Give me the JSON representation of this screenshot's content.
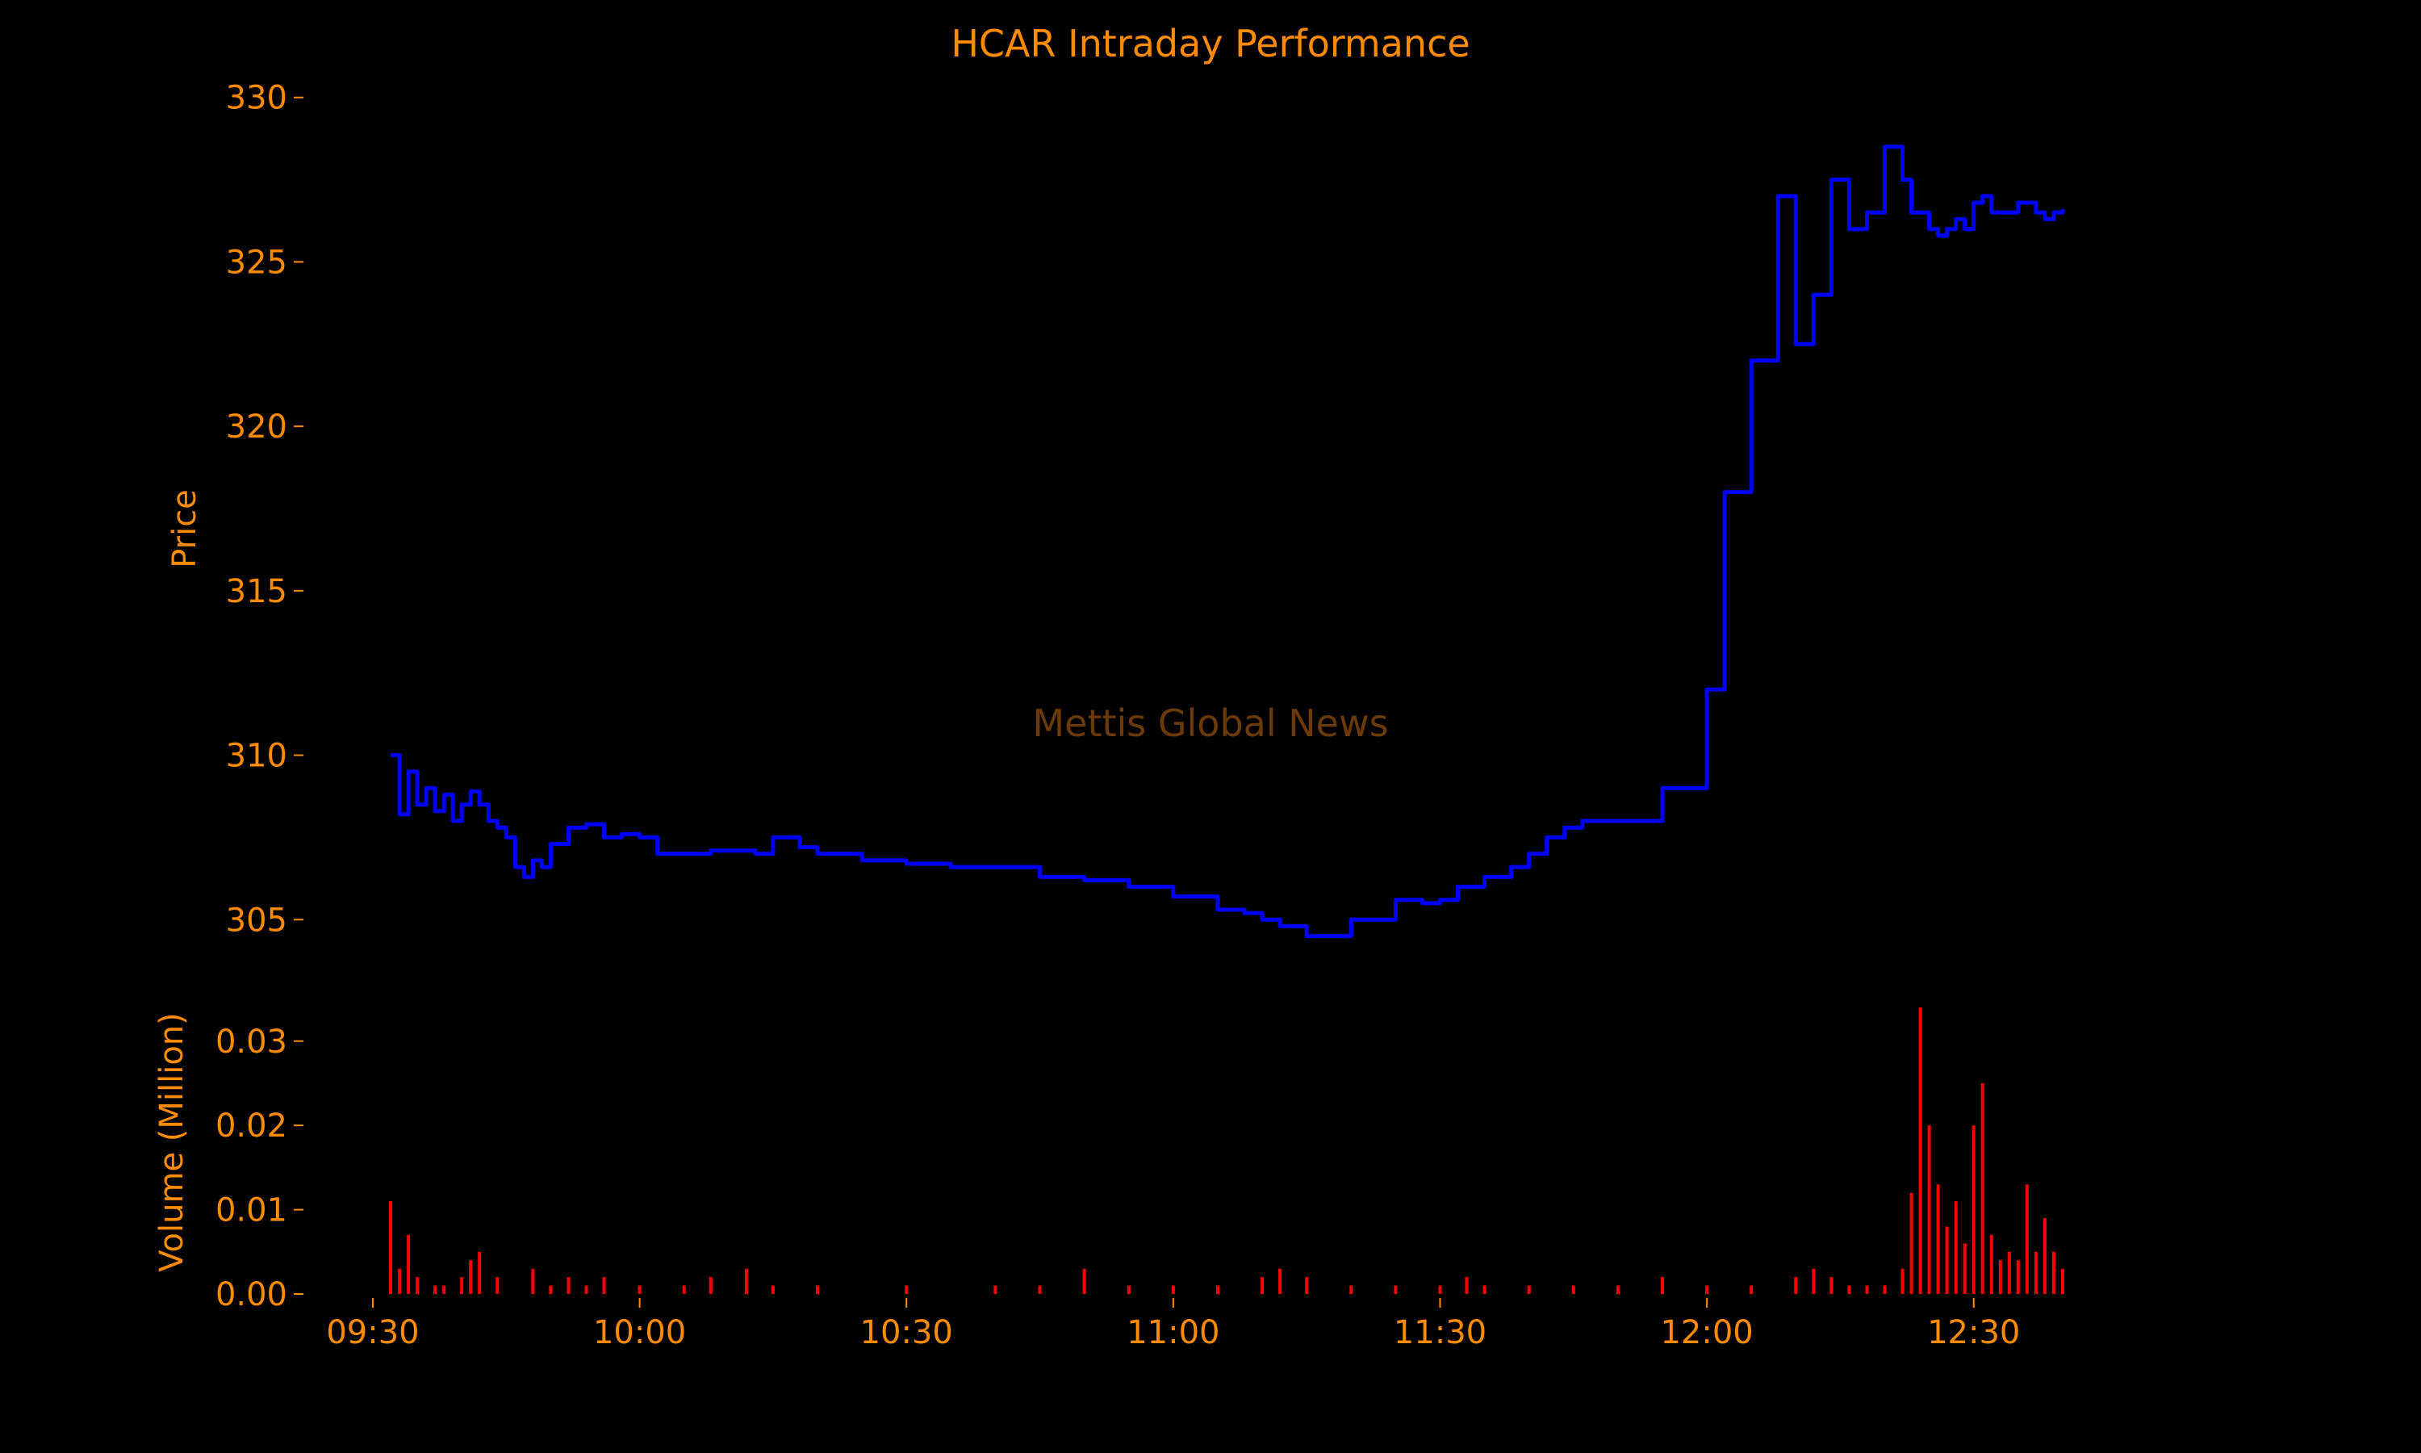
{
  "colors": {
    "background": "#000000",
    "text": "#ff8c00",
    "price_line": "#0000ff",
    "volume_bars": "#ff0000",
    "watermark": "#6b3a08"
  },
  "watermark": "Mettis Global News",
  "chart_data": {
    "type": "line",
    "title": "HCAR Intraday Performance",
    "xlabel": "",
    "x_ticks": [
      "09:30",
      "10:00",
      "10:30",
      "11:00",
      "11:30",
      "12:00",
      "12:30"
    ],
    "x_range": [
      "09:30",
      "12:44"
    ],
    "grid": false,
    "legend": "none",
    "panels": [
      {
        "name": "price",
        "ylabel": "Price",
        "ylim": [
          304,
          331
        ],
        "y_ticks": [
          "305",
          "310",
          "315",
          "320",
          "325",
          "330"
        ],
        "series": [
          {
            "type": "line",
            "x": [
              "09:32",
              "09:33",
              "09:34",
              "09:35",
              "09:36",
              "09:37",
              "09:38",
              "09:39",
              "09:40",
              "09:41",
              "09:42",
              "09:43",
              "09:44",
              "09:45",
              "09:46",
              "09:47",
              "09:48",
              "09:49",
              "09:50",
              "09:52",
              "09:54",
              "09:56",
              "09:58",
              "10:00",
              "10:02",
              "10:05",
              "10:08",
              "10:11",
              "10:13",
              "10:15",
              "10:18",
              "10:20",
              "10:25",
              "10:30",
              "10:35",
              "10:40",
              "10:45",
              "10:50",
              "10:55",
              "11:00",
              "11:05",
              "11:08",
              "11:10",
              "11:12",
              "11:15",
              "11:20",
              "11:25",
              "11:28",
              "11:30",
              "11:32",
              "11:35",
              "11:38",
              "11:40",
              "11:42",
              "11:44",
              "11:46",
              "11:48",
              "11:52",
              "11:55",
              "12:00",
              "12:02",
              "12:05",
              "12:08",
              "12:10",
              "12:12",
              "12:14",
              "12:16",
              "12:18",
              "12:20",
              "12:22",
              "12:23",
              "12:24",
              "12:25",
              "12:26",
              "12:27",
              "12:28",
              "12:29",
              "12:30",
              "12:31",
              "12:32",
              "12:33",
              "12:34",
              "12:35",
              "12:36",
              "12:37",
              "12:38",
              "12:39",
              "12:40"
            ],
            "y": [
              310.0,
              308.2,
              309.5,
              308.5,
              309.0,
              308.3,
              308.8,
              308.0,
              308.5,
              308.9,
              308.5,
              308.0,
              307.8,
              307.5,
              306.6,
              306.3,
              306.8,
              306.6,
              307.3,
              307.8,
              307.9,
              307.5,
              307.6,
              307.5,
              307.0,
              307.0,
              307.1,
              307.1,
              307.0,
              307.5,
              307.2,
              307.0,
              306.8,
              306.7,
              306.6,
              306.6,
              306.3,
              306.2,
              306.0,
              305.7,
              305.3,
              305.2,
              305.0,
              304.8,
              304.5,
              305.0,
              305.6,
              305.5,
              305.6,
              306.0,
              306.3,
              306.6,
              307.0,
              307.5,
              307.8,
              308.0,
              308.0,
              308.0,
              309.0,
              312.0,
              318.0,
              322.0,
              327.0,
              322.5,
              324.0,
              327.5,
              326.0,
              326.5,
              328.5,
              327.5,
              326.5,
              326.5,
              326.0,
              325.8,
              326.0,
              326.3,
              326.0,
              326.8,
              327.0,
              326.5,
              326.5,
              326.5,
              326.8,
              326.8,
              326.5,
              326.3,
              326.5,
              326.6
            ],
            "name": ""
          }
        ]
      },
      {
        "name": "volume",
        "ylabel": "Volume (Million)",
        "ylim": [
          0,
          0.034
        ],
        "y_ticks": [
          "0.00",
          "0.01",
          "0.02",
          "0.03"
        ],
        "series": [
          {
            "type": "bar",
            "x": [
              "09:32",
              "09:33",
              "09:34",
              "09:35",
              "09:37",
              "09:38",
              "09:40",
              "09:41",
              "09:42",
              "09:44",
              "09:48",
              "09:50",
              "09:52",
              "09:54",
              "09:56",
              "10:00",
              "10:05",
              "10:08",
              "10:12",
              "10:15",
              "10:20",
              "10:30",
              "10:40",
              "10:45",
              "10:50",
              "10:55",
              "11:00",
              "11:05",
              "11:10",
              "11:12",
              "11:15",
              "11:20",
              "11:25",
              "11:30",
              "11:33",
              "11:35",
              "11:40",
              "11:45",
              "11:50",
              "11:55",
              "12:00",
              "12:05",
              "12:10",
              "12:12",
              "12:14",
              "12:16",
              "12:18",
              "12:20",
              "12:22",
              "12:23",
              "12:24",
              "12:25",
              "12:26",
              "12:27",
              "12:28",
              "12:29",
              "12:30",
              "12:31",
              "12:32",
              "12:33",
              "12:34",
              "12:35",
              "12:36",
              "12:37",
              "12:38",
              "12:39",
              "12:40"
            ],
            "values": [
              0.011,
              0.003,
              0.007,
              0.002,
              0.001,
              0.001,
              0.002,
              0.004,
              0.005,
              0.002,
              0.003,
              0.001,
              0.002,
              0.001,
              0.002,
              0.001,
              0.001,
              0.002,
              0.003,
              0.001,
              0.001,
              0.001,
              0.001,
              0.001,
              0.003,
              0.001,
              0.001,
              0.001,
              0.002,
              0.003,
              0.002,
              0.001,
              0.001,
              0.001,
              0.002,
              0.001,
              0.001,
              0.001,
              0.001,
              0.002,
              0.001,
              0.001,
              0.002,
              0.003,
              0.002,
              0.001,
              0.001,
              0.001,
              0.003,
              0.012,
              0.034,
              0.02,
              0.013,
              0.008,
              0.011,
              0.006,
              0.02,
              0.025,
              0.007,
              0.004,
              0.005,
              0.004,
              0.013,
              0.005,
              0.009,
              0.005,
              0.003
            ],
            "name": ""
          }
        ]
      }
    ]
  }
}
